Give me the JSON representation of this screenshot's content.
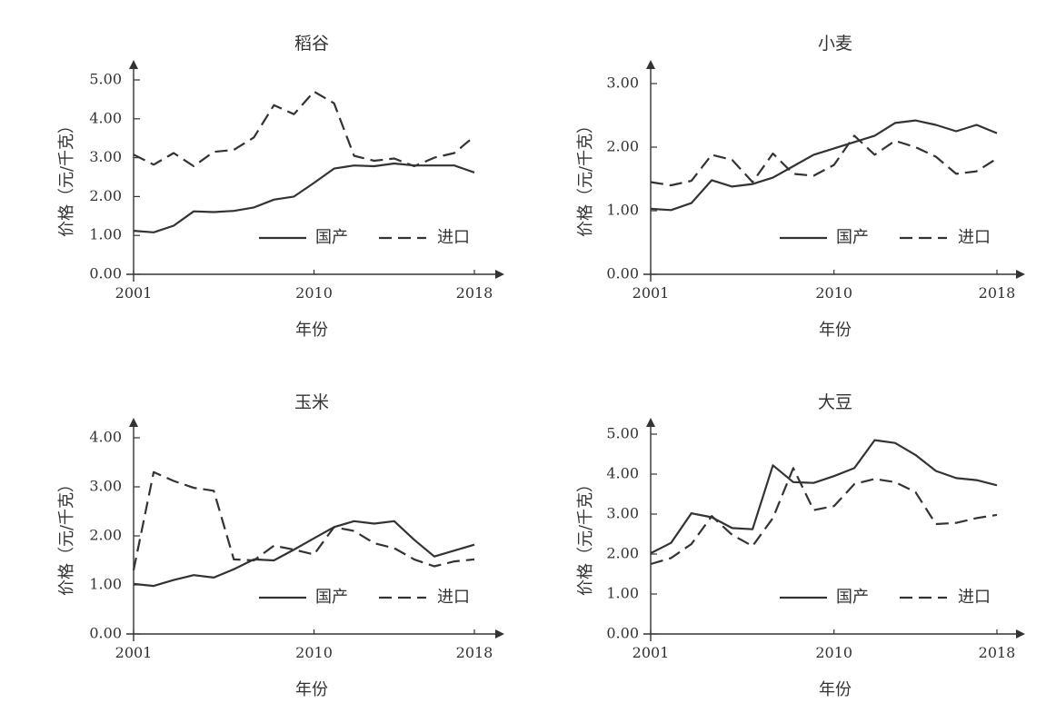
{
  "page": {
    "background": "#ffffff",
    "line_color": "#333333"
  },
  "chart_data": [
    {
      "type": "line",
      "title": "稻谷",
      "xlabel": "年份",
      "ylabel": "价格（元/千克）",
      "xlim": [
        2001,
        2018
      ],
      "x_ticks": [
        "2001",
        "2010",
        "2018"
      ],
      "ylim": [
        0,
        5
      ],
      "y_ticks": [
        "0.00",
        "1.00",
        "2.00",
        "3.00",
        "4.00",
        "5.00"
      ],
      "grid": false,
      "legend_position": "bottom-right",
      "x": [
        2001,
        2002,
        2003,
        2004,
        2005,
        2006,
        2007,
        2008,
        2009,
        2010,
        2011,
        2012,
        2013,
        2014,
        2015,
        2016,
        2017,
        2018
      ],
      "series": [
        {
          "name": "国产",
          "style": "solid",
          "values": [
            1.12,
            1.08,
            1.25,
            1.62,
            1.6,
            1.63,
            1.72,
            1.92,
            2.0,
            2.35,
            2.72,
            2.8,
            2.78,
            2.85,
            2.8,
            2.8,
            2.8,
            2.62
          ]
        },
        {
          "name": "进口",
          "style": "dashed",
          "values": [
            3.08,
            2.82,
            3.12,
            2.78,
            3.15,
            3.2,
            3.52,
            4.35,
            4.12,
            4.7,
            4.4,
            3.05,
            2.92,
            2.98,
            2.78,
            3.0,
            3.12,
            3.55
          ]
        }
      ]
    },
    {
      "type": "line",
      "title": "小麦",
      "xlabel": "年份",
      "ylabel": "价格（元/千克）",
      "xlim": [
        2001,
        2018
      ],
      "x_ticks": [
        "2001",
        "2010",
        "2018"
      ],
      "ylim": [
        0,
        3
      ],
      "y_ticks": [
        "0.00",
        "1.00",
        "2.00",
        "3.00"
      ],
      "grid": false,
      "legend_position": "bottom-right",
      "x": [
        2001,
        2002,
        2003,
        2004,
        2005,
        2006,
        2007,
        2008,
        2009,
        2010,
        2011,
        2012,
        2013,
        2014,
        2015,
        2016,
        2017,
        2018
      ],
      "series": [
        {
          "name": "国产",
          "style": "solid",
          "values": [
            1.03,
            1.01,
            1.12,
            1.48,
            1.38,
            1.42,
            1.52,
            1.7,
            1.88,
            1.98,
            2.08,
            2.18,
            2.38,
            2.42,
            2.35,
            2.25,
            2.35,
            2.22
          ]
        },
        {
          "name": "进口",
          "style": "dashed",
          "values": [
            1.45,
            1.4,
            1.47,
            1.88,
            1.8,
            1.45,
            1.9,
            1.58,
            1.55,
            1.72,
            2.18,
            1.88,
            2.1,
            2.0,
            1.85,
            1.58,
            1.62,
            1.82
          ]
        }
      ]
    },
    {
      "type": "line",
      "title": "玉米",
      "xlabel": "年份",
      "ylabel": "价格（元/千克）",
      "xlim": [
        2001,
        2018
      ],
      "x_ticks": [
        "2001",
        "2010",
        "2018"
      ],
      "ylim": [
        0,
        4
      ],
      "y_ticks": [
        "0.00",
        "1.00",
        "2.00",
        "3.00",
        "4.00"
      ],
      "grid": false,
      "legend_position": "bottom-right",
      "x": [
        2001,
        2002,
        2003,
        2004,
        2005,
        2006,
        2007,
        2008,
        2009,
        2010,
        2011,
        2012,
        2013,
        2014,
        2015,
        2016,
        2017,
        2018
      ],
      "series": [
        {
          "name": "国产",
          "style": "solid",
          "values": [
            1.02,
            0.98,
            1.1,
            1.2,
            1.15,
            1.32,
            1.52,
            1.5,
            1.72,
            1.95,
            2.18,
            2.3,
            2.25,
            2.3,
            1.92,
            1.58,
            1.7,
            1.82
          ]
        },
        {
          "name": "进口",
          "style": "dashed",
          "values": [
            1.3,
            3.3,
            3.12,
            2.98,
            2.92,
            1.52,
            1.5,
            1.8,
            1.72,
            1.62,
            2.18,
            2.1,
            1.85,
            1.75,
            1.52,
            1.38,
            1.48,
            1.52
          ]
        }
      ]
    },
    {
      "type": "line",
      "title": "大豆",
      "xlabel": "年份",
      "ylabel": "价格（元/千克）",
      "xlim": [
        2001,
        2018
      ],
      "x_ticks": [
        "2001",
        "2010",
        "2018"
      ],
      "ylim": [
        0,
        5
      ],
      "y_ticks": [
        "0.00",
        "1.00",
        "2.00",
        "3.00",
        "4.00",
        "5.00"
      ],
      "grid": false,
      "legend_position": "bottom-right",
      "x": [
        2001,
        2002,
        2003,
        2004,
        2005,
        2006,
        2007,
        2008,
        2009,
        2010,
        2011,
        2012,
        2013,
        2014,
        2015,
        2016,
        2017,
        2018
      ],
      "series": [
        {
          "name": "国产",
          "style": "solid",
          "values": [
            2.02,
            2.28,
            3.02,
            2.92,
            2.65,
            2.62,
            4.22,
            3.8,
            3.78,
            3.95,
            4.15,
            4.85,
            4.78,
            4.48,
            4.08,
            3.9,
            3.85,
            3.72
          ]
        },
        {
          "name": "进口",
          "style": "dashed",
          "values": [
            1.75,
            1.9,
            2.25,
            2.95,
            2.48,
            2.2,
            2.9,
            4.15,
            3.1,
            3.2,
            3.75,
            3.88,
            3.8,
            3.55,
            2.75,
            2.78,
            2.9,
            2.98
          ]
        }
      ]
    }
  ]
}
